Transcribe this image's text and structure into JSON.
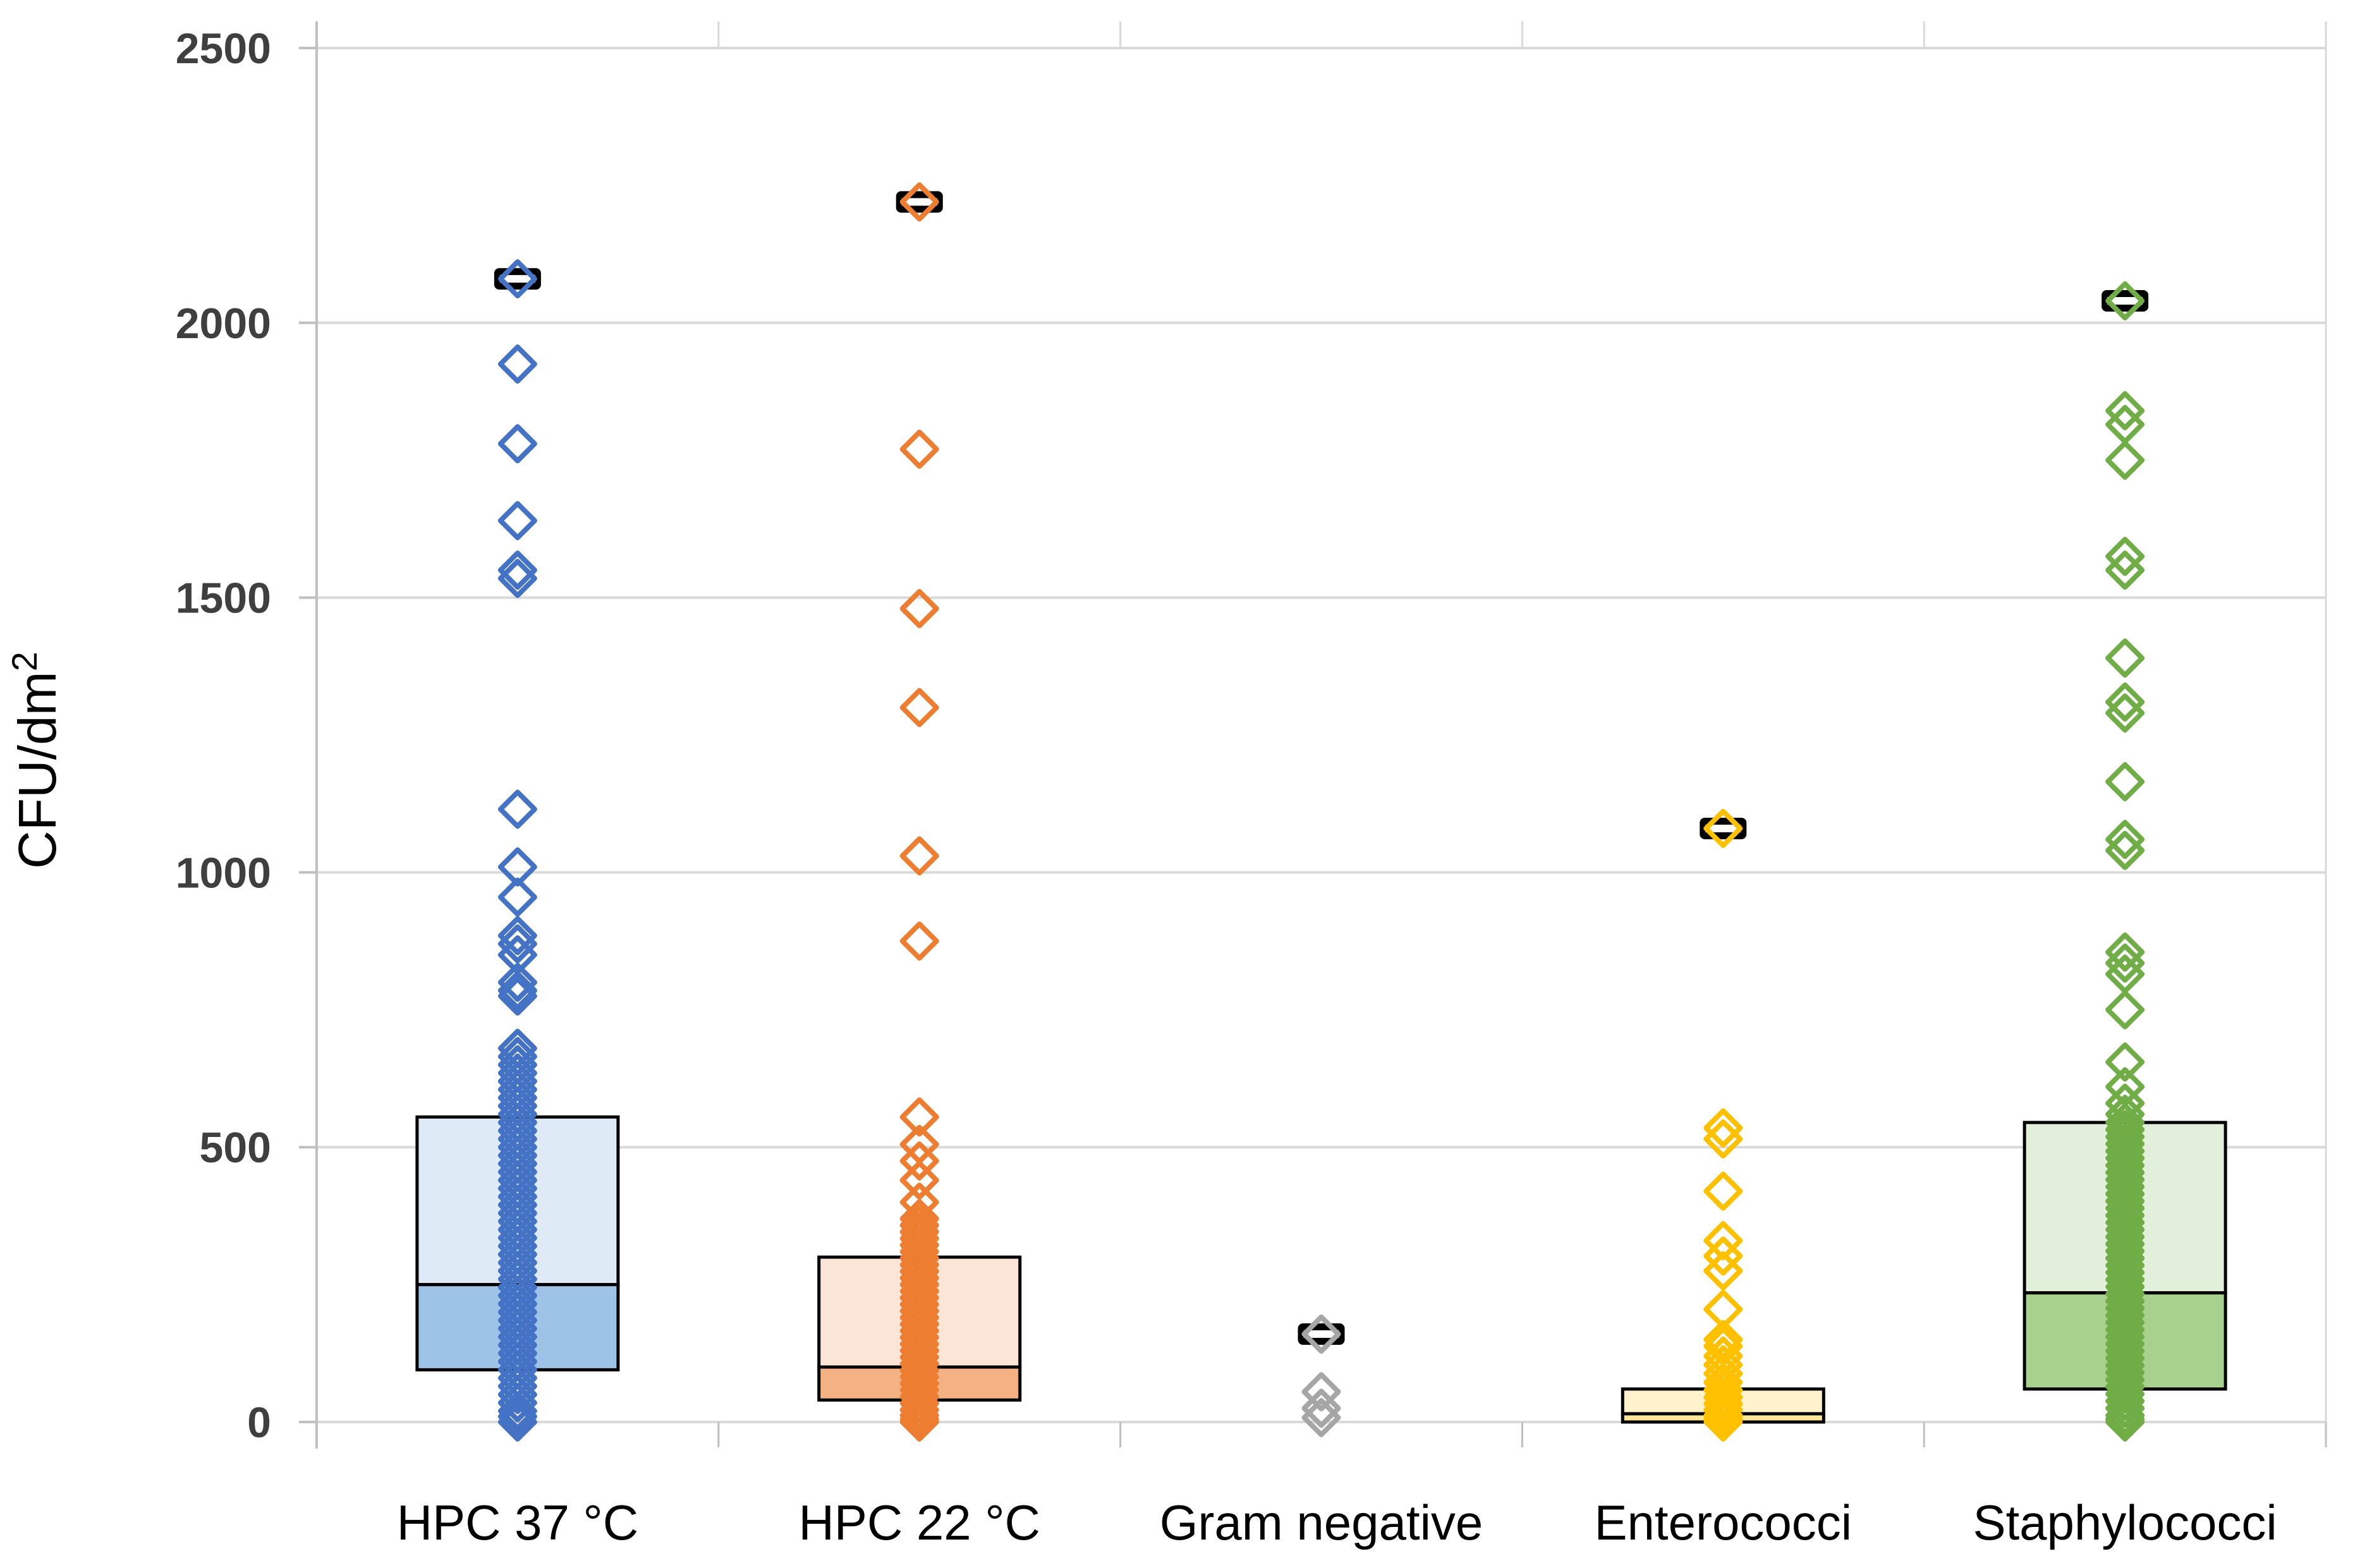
{
  "page": {
    "background": "#FFFFFF"
  },
  "chart_data": {
    "type": "box-scatter",
    "title": "",
    "xlabel": "",
    "ylabel": "CFU/dm²",
    "ylabel_base": "CFU/dm",
    "ylabel_exponent": "2",
    "ylim": [
      0,
      2500
    ],
    "yticks": [
      0,
      500,
      1000,
      1500,
      2000,
      2500
    ],
    "grid": true,
    "legend": "none",
    "marker_shape": "open-diamond",
    "max_marker": "black-dash-cap",
    "categories": [
      "HPC 37 °C",
      "HPC 22 °C",
      "Gram negative",
      "Enterococci",
      "Staphylococci"
    ],
    "layout": {
      "gridline_color": "#D9D9D9",
      "axis_line_color": "#BFBFBF",
      "tick_label_color": "#3F3F3F",
      "label_color": "#000000",
      "box_border_color": "#000000"
    },
    "series": [
      {
        "name": "HPC 37 °C",
        "marker_color": "#4472C4",
        "box_fill_upper": "#DEEAF6",
        "box_fill_lower": "#9DC3E6",
        "box": {
          "q1": 95,
          "median": 250,
          "q3": 555
        },
        "max_cap": 2080,
        "points": [
          2080,
          1925,
          1780,
          1640,
          1550,
          1535,
          1115,
          1010,
          955,
          885,
          870,
          850,
          800,
          785,
          775,
          680,
          665,
          650,
          635,
          620,
          605,
          590,
          575,
          560,
          545,
          530,
          515,
          500,
          485,
          470,
          455,
          440,
          425,
          410,
          395,
          380,
          365,
          350,
          335,
          320,
          305,
          290,
          275,
          260,
          245,
          230,
          215,
          200,
          185,
          170,
          155,
          140,
          125,
          110,
          95,
          80,
          65,
          50,
          35,
          20,
          10,
          0
        ]
      },
      {
        "name": "HPC 22 °C",
        "marker_color": "#ED7D31",
        "box_fill_upper": "#FBE5D6",
        "box_fill_lower": "#F4B183",
        "box": {
          "q1": 40,
          "median": 100,
          "q3": 300
        },
        "max_cap": 2220,
        "points": [
          2220,
          1770,
          1480,
          1300,
          1030,
          875,
          555,
          505,
          475,
          440,
          400,
          370,
          358,
          346,
          334,
          322,
          310,
          298,
          286,
          274,
          262,
          250,
          238,
          226,
          214,
          202,
          190,
          178,
          166,
          154,
          142,
          130,
          118,
          106,
          94,
          82,
          70,
          58,
          46,
          34,
          22,
          12,
          5,
          0
        ]
      },
      {
        "name": "Gram negative",
        "marker_color": "#A6A6A6",
        "box_fill_upper": null,
        "box_fill_lower": null,
        "box": null,
        "max_cap": 160,
        "points": [
          160,
          55,
          25,
          8
        ]
      },
      {
        "name": "Enterococci",
        "marker_color": "#FFC000",
        "box_fill_upper": "#FFF2CC",
        "box_fill_lower": "#FFE699",
        "box": {
          "q1": 0,
          "median": 15,
          "q3": 60
        },
        "max_cap": 1080,
        "points": [
          1080,
          535,
          515,
          420,
          330,
          302,
          275,
          205,
          150,
          138,
          120,
          104,
          88,
          72,
          58,
          45,
          33,
          22,
          12,
          5,
          0
        ]
      },
      {
        "name": "Staphylococci",
        "marker_color": "#70AD47",
        "box_fill_upper": "#E2EFDA",
        "box_fill_lower": "#A9D18E",
        "box": {
          "q1": 60,
          "median": 235,
          "q3": 545
        },
        "max_cap": 2040,
        "points": [
          2040,
          1840,
          1815,
          1750,
          1575,
          1550,
          1390,
          1310,
          1290,
          1165,
          1060,
          1040,
          855,
          835,
          815,
          750,
          655,
          610,
          580,
          560,
          545,
          532,
          519,
          506,
          493,
          480,
          467,
          454,
          441,
          428,
          415,
          402,
          389,
          376,
          363,
          350,
          337,
          324,
          311,
          298,
          285,
          272,
          259,
          246,
          233,
          220,
          207,
          194,
          181,
          168,
          155,
          142,
          129,
          116,
          103,
          90,
          77,
          64,
          51,
          38,
          25,
          12,
          5,
          0
        ]
      }
    ]
  }
}
